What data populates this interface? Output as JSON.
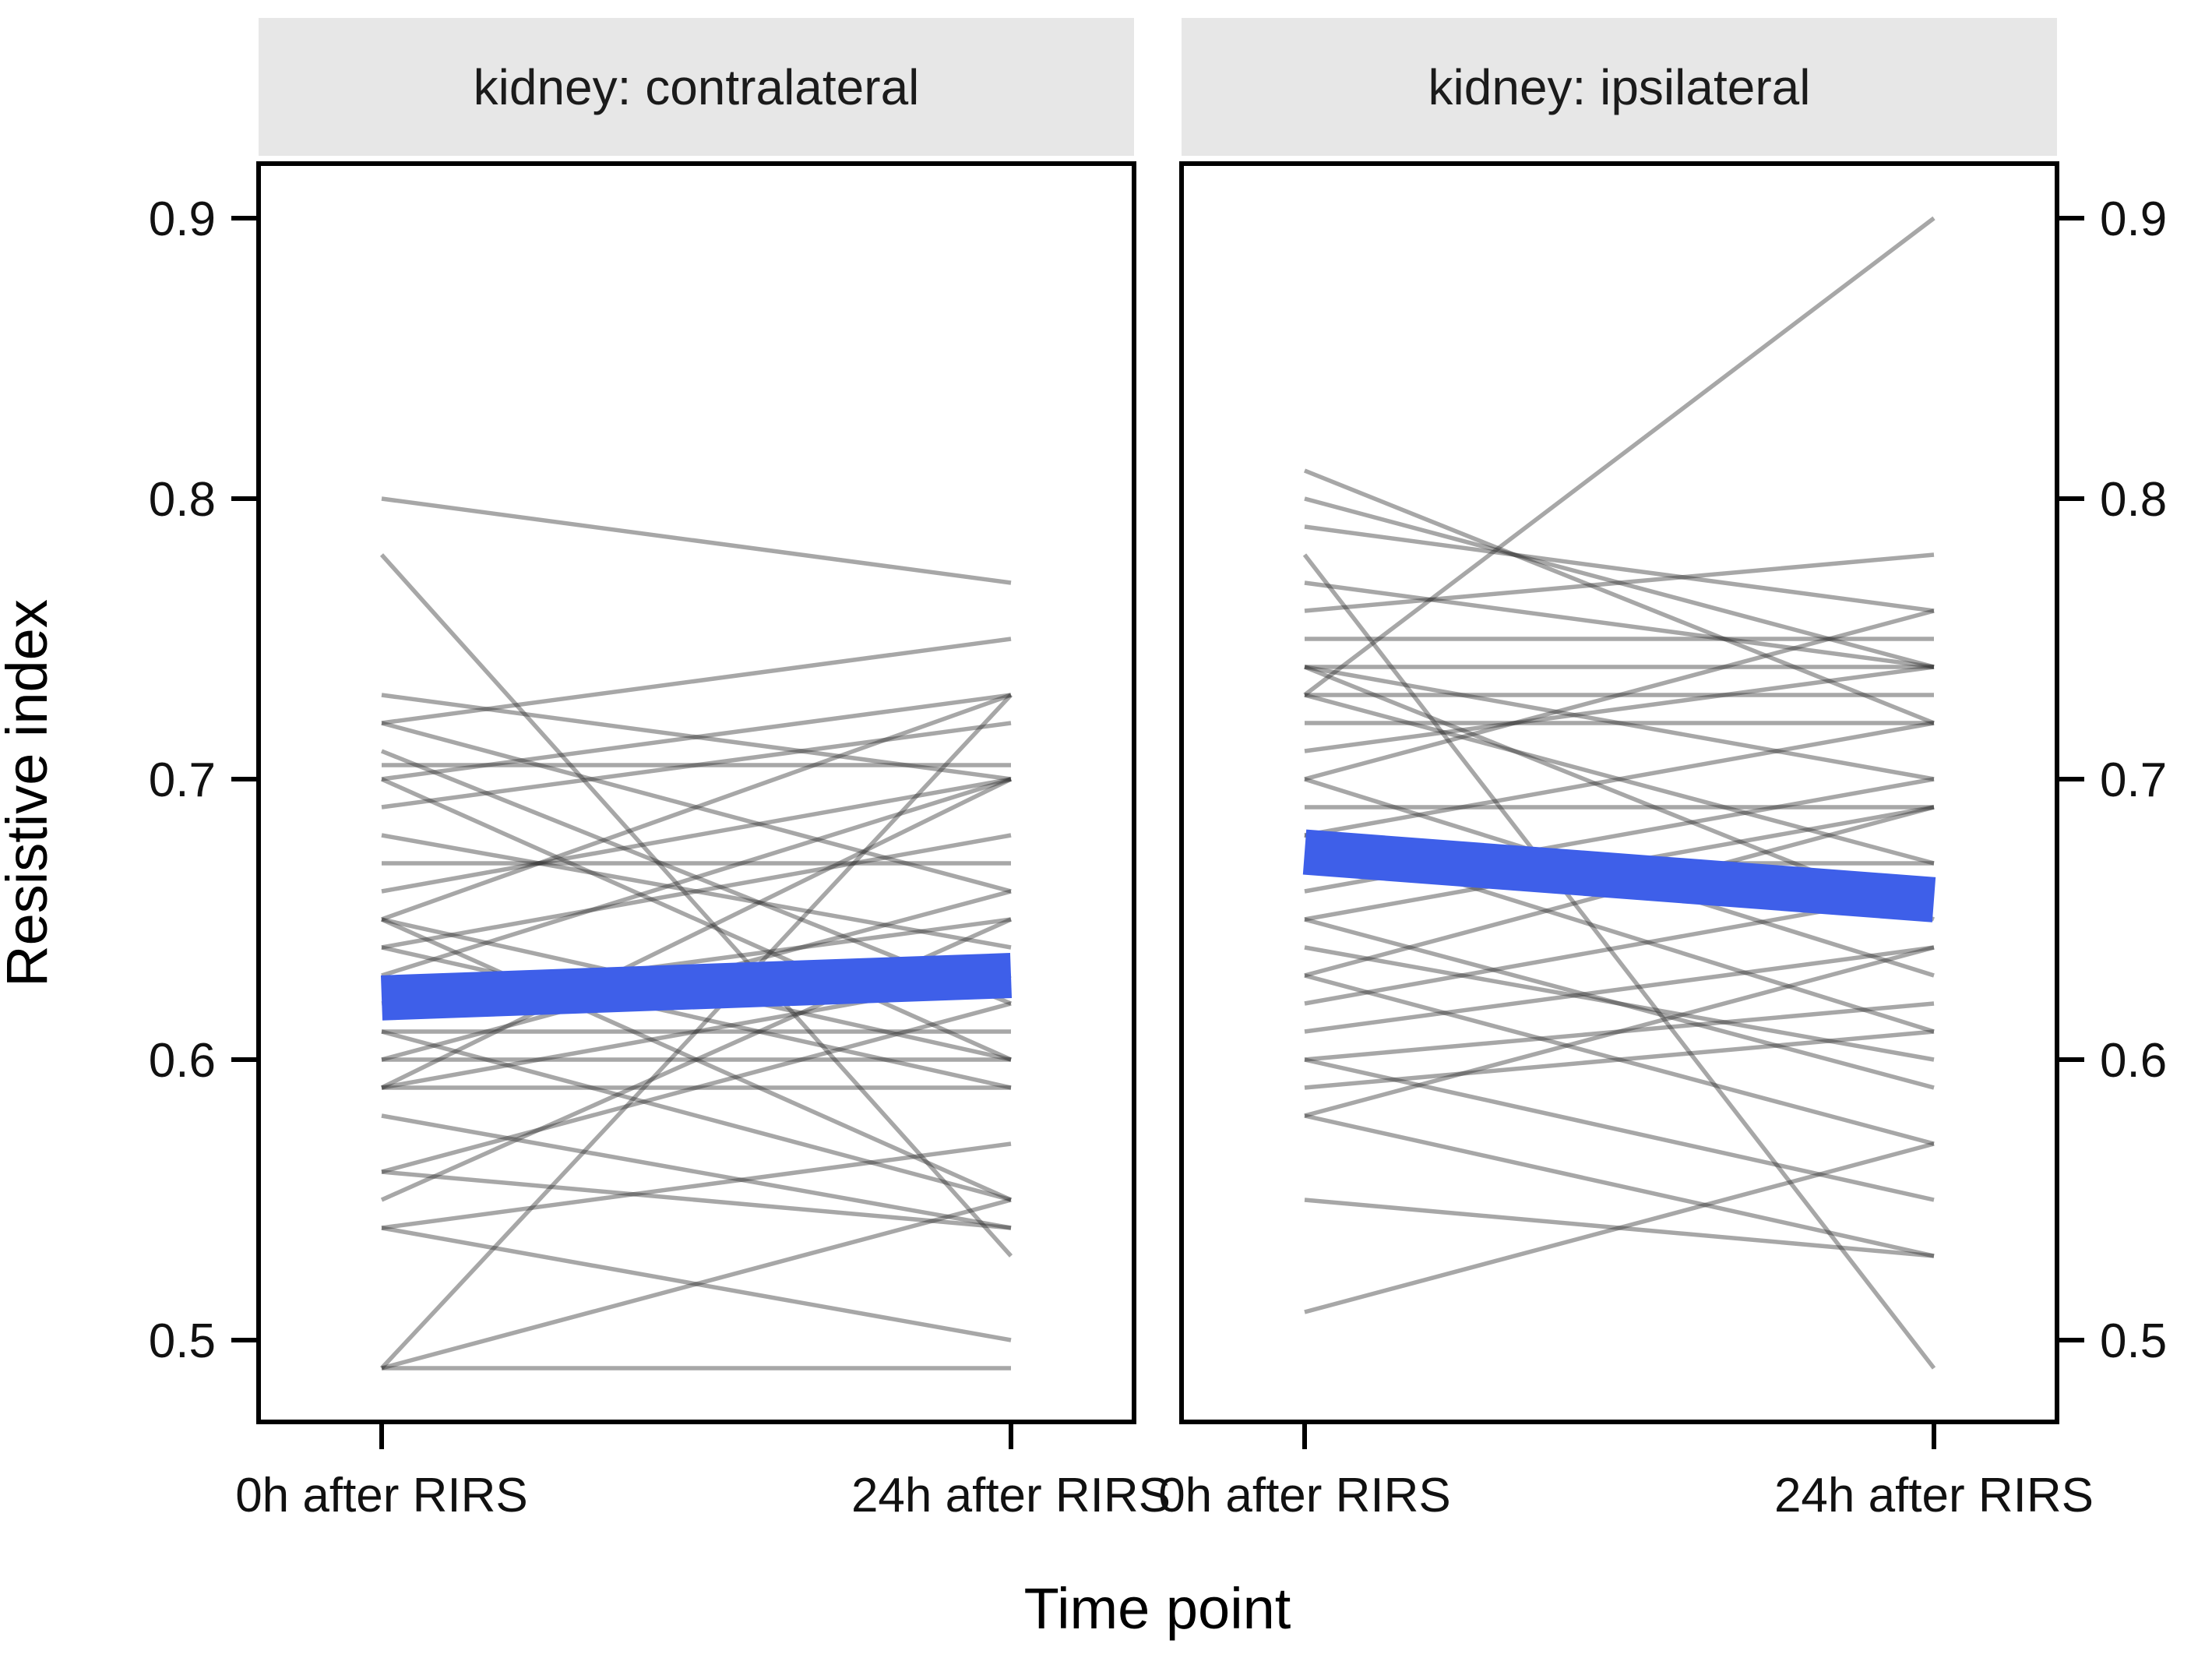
{
  "chart_data": {
    "type": "line",
    "subtype": "paired-spaghetti-slope-chart",
    "xlabel": "Time point",
    "ylabel": "Resistive index",
    "x_categories": [
      "0h after RIRS",
      "24h after RIRS"
    ],
    "y_ticks": [
      0.5,
      0.6,
      0.7,
      0.8,
      0.9
    ],
    "y_tick_labels": [
      "0.5",
      "0.6",
      "0.7",
      "0.8",
      "0.9"
    ],
    "ylim": [
      0.471,
      0.919
    ],
    "grid": "off",
    "legend_position": "none",
    "facets": [
      {
        "title": "kidney: contralateral",
        "mean_line": [
          0.622,
          0.63
        ],
        "lines": [
          [
            0.8,
            0.77
          ],
          [
            0.78,
            0.53
          ],
          [
            0.73,
            0.7
          ],
          [
            0.72,
            0.75
          ],
          [
            0.72,
            0.66
          ],
          [
            0.71,
            0.62
          ],
          [
            0.705,
            0.705
          ],
          [
            0.7,
            0.73
          ],
          [
            0.7,
            0.6
          ],
          [
            0.69,
            0.72
          ],
          [
            0.68,
            0.64
          ],
          [
            0.67,
            0.67
          ],
          [
            0.66,
            0.7
          ],
          [
            0.65,
            0.73
          ],
          [
            0.65,
            0.6
          ],
          [
            0.65,
            0.55
          ],
          [
            0.64,
            0.68
          ],
          [
            0.64,
            0.59
          ],
          [
            0.63,
            0.7
          ],
          [
            0.62,
            0.65
          ],
          [
            0.61,
            0.61
          ],
          [
            0.61,
            0.55
          ],
          [
            0.6,
            0.66
          ],
          [
            0.6,
            0.6
          ],
          [
            0.59,
            0.7
          ],
          [
            0.59,
            0.63
          ],
          [
            0.59,
            0.59
          ],
          [
            0.58,
            0.54
          ],
          [
            0.56,
            0.62
          ],
          [
            0.56,
            0.54
          ],
          [
            0.55,
            0.65
          ],
          [
            0.54,
            0.57
          ],
          [
            0.54,
            0.5
          ],
          [
            0.49,
            0.73
          ],
          [
            0.49,
            0.55
          ],
          [
            0.49,
            0.49
          ]
        ]
      },
      {
        "title": "kidney: ipsilateral",
        "mean_line": [
          0.674,
          0.657
        ],
        "lines": [
          [
            0.81,
            0.72
          ],
          [
            0.8,
            0.74
          ],
          [
            0.79,
            0.76
          ],
          [
            0.78,
            0.49
          ],
          [
            0.77,
            0.74
          ],
          [
            0.76,
            0.78
          ],
          [
            0.75,
            0.75
          ],
          [
            0.74,
            0.74
          ],
          [
            0.74,
            0.7
          ],
          [
            0.74,
            0.65
          ],
          [
            0.73,
            0.9
          ],
          [
            0.73,
            0.73
          ],
          [
            0.73,
            0.67
          ],
          [
            0.72,
            0.72
          ],
          [
            0.71,
            0.74
          ],
          [
            0.7,
            0.76
          ],
          [
            0.7,
            0.63
          ],
          [
            0.69,
            0.69
          ],
          [
            0.68,
            0.72
          ],
          [
            0.68,
            0.61
          ],
          [
            0.67,
            0.67
          ],
          [
            0.66,
            0.7
          ],
          [
            0.65,
            0.69
          ],
          [
            0.65,
            0.59
          ],
          [
            0.64,
            0.6
          ],
          [
            0.63,
            0.69
          ],
          [
            0.63,
            0.57
          ],
          [
            0.62,
            0.66
          ],
          [
            0.61,
            0.64
          ],
          [
            0.6,
            0.62
          ],
          [
            0.6,
            0.55
          ],
          [
            0.59,
            0.61
          ],
          [
            0.58,
            0.64
          ],
          [
            0.58,
            0.53
          ],
          [
            0.55,
            0.53
          ],
          [
            0.51,
            0.57
          ]
        ]
      }
    ],
    "colors": {
      "mean_line": "#3E5FE9",
      "individual_line": "#2E2E2E",
      "individual_line_opacity": 0.42,
      "strip_background": "#E7E7E7",
      "panel_border": "#000000",
      "background": "#FFFFFF"
    }
  }
}
